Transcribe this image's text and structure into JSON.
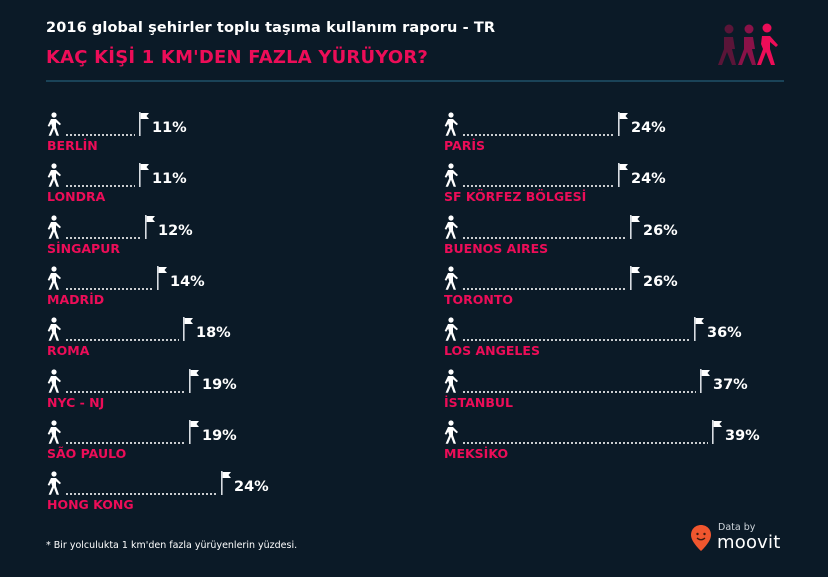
{
  "header": {
    "subtitle": "2016 global şehirler toplu taşıma kullanım raporu - TR",
    "title": "KAÇ KİŞİ 1 KM'DEN FAZLA YÜRÜYOR?",
    "icon": "walking-people-icon"
  },
  "colors": {
    "background": "#0b1a27",
    "accent": "#ec0d58",
    "text": "#ffffff",
    "divider": "#1a4358",
    "brand": "#f0562e"
  },
  "chart_data": {
    "type": "bar",
    "title": "KAÇ KİŞİ 1 KM'DEN FAZLA YÜRÜYOR?",
    "subtitle": "2016 global şehirler toplu taşıma kullanım raporu - TR",
    "xlabel": "",
    "ylabel": "Bir yolculukta 1 km'den fazla yürüyenlerin yüzdesi",
    "unit": "%",
    "orientation": "horizontal",
    "columns": [
      {
        "categories": [
          "BERLİN",
          "LONDRA",
          "SİNGAPUR",
          "MADRİD",
          "ROMA",
          "NYC - NJ",
          "SÃO PAULO",
          "HONG KONG"
        ],
        "values": [
          11,
          11,
          12,
          14,
          18,
          19,
          19,
          24
        ],
        "labels": [
          "11%",
          "11%",
          "12%",
          "14%",
          "18%",
          "19%",
          "19%",
          "24%"
        ]
      },
      {
        "categories": [
          "PARİS",
          "SF KÖRFEZ BÖLGESİ",
          "BUENOS AIRES",
          "TORONTO",
          "LOS ANGELES",
          "İSTANBUL",
          "MEKSİKO"
        ],
        "values": [
          24,
          24,
          26,
          26,
          36,
          37,
          39
        ],
        "labels": [
          "24%",
          "24%",
          "26%",
          "26%",
          "36%",
          "37%",
          "39%"
        ]
      }
    ]
  },
  "footer": {
    "footnote": "* Bir yolculukta 1 km'den fazla yürüyenlerin yüzdesi.",
    "brand_prefix": "Data by",
    "brand_name": "moovit",
    "brand_icon": "moovit-pin-icon"
  }
}
